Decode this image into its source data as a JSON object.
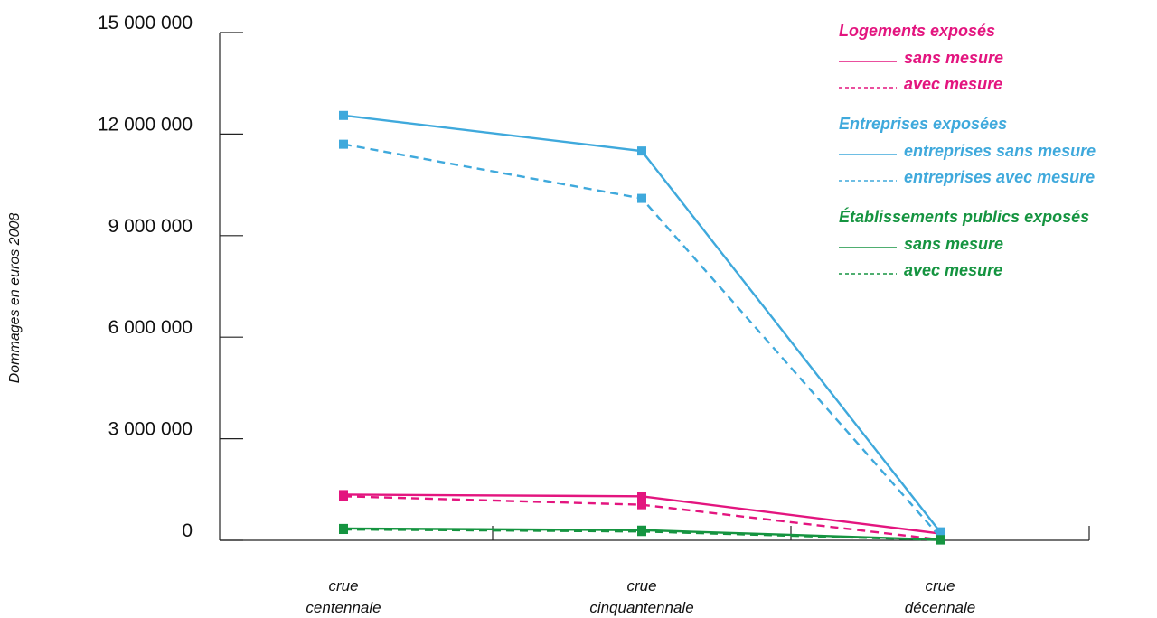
{
  "chart_data": {
    "type": "line",
    "title": "",
    "xlabel": "",
    "ylabel": "Dommages en euros 2008",
    "ylim": [
      0,
      15000000
    ],
    "y_ticks": [
      0,
      3000000,
      6000000,
      9000000,
      12000000,
      15000000
    ],
    "y_tick_labels": [
      "0",
      "3 000 000",
      "6 000 000",
      "9 000 000",
      "12 000 000",
      "15 000 000"
    ],
    "categories": [
      [
        "crue",
        "centennale"
      ],
      [
        "crue",
        "cinquantennale"
      ],
      [
        "crue",
        "décennale"
      ]
    ],
    "grid": false,
    "legend_position": "top-right",
    "groups": [
      {
        "title": "Logements exposés",
        "color": "#e3157f",
        "series": [
          {
            "name": "sans mesure",
            "dash": false,
            "values": [
              1350000,
              1300000,
              200000
            ]
          },
          {
            "name": "avec mesure",
            "dash": true,
            "values": [
              1300000,
              1050000,
              20000
            ]
          }
        ]
      },
      {
        "title": "Entreprises exposées",
        "color": "#3fa9dc",
        "series": [
          {
            "name": "entreprises sans mesure",
            "dash": false,
            "values": [
              12550000,
              11500000,
              250000
            ]
          },
          {
            "name": "entreprises avec mesure",
            "dash": true,
            "values": [
              11700000,
              10100000,
              100000
            ]
          }
        ]
      },
      {
        "title": "Établissements publics exposés",
        "color": "#159440",
        "series": [
          {
            "name": "sans mesure",
            "dash": false,
            "values": [
              350000,
              300000,
              20000
            ]
          },
          {
            "name": "avec mesure",
            "dash": true,
            "values": [
              320000,
              260000,
              10000
            ]
          }
        ]
      }
    ]
  }
}
